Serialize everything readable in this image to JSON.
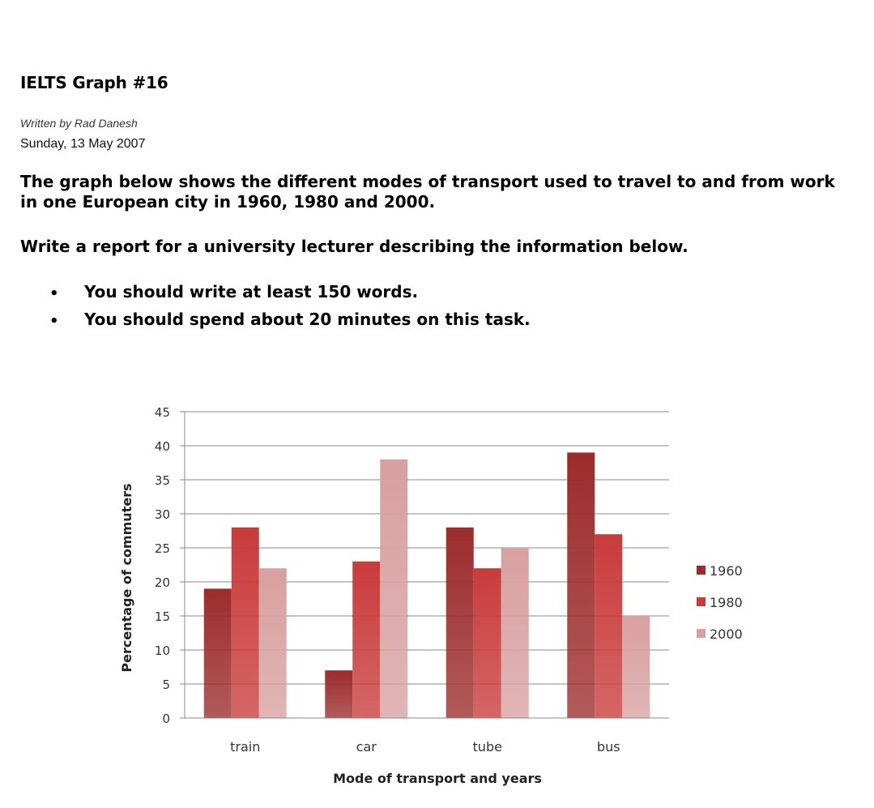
{
  "header": {
    "title": "IELTS Graph #16",
    "author": "Written by Rad Danesh",
    "date": "Sunday, 13 May 2007"
  },
  "task": {
    "description": "The graph below shows the different modes of transport used to travel to and from work in one European city in 1960, 1980 and 2000.",
    "instruction": "Write a report for a university lecturer describing the information below.",
    "bullets": [
      "You should write at least 150 words.",
      "You should spend about 20 minutes on this task."
    ],
    "bullet_glyph": "•"
  },
  "chart_data": {
    "type": "bar",
    "title": "",
    "xlabel": "Mode of transport and years",
    "ylabel": "Percentage of commuters",
    "categories": [
      "train",
      "car",
      "tube",
      "bus"
    ],
    "series": [
      {
        "name": "1960",
        "values": [
          19,
          7,
          28,
          39
        ],
        "color": "#9c2c2c"
      },
      {
        "name": "1980",
        "values": [
          28,
          23,
          22,
          27
        ],
        "color": "#c93b3b"
      },
      {
        "name": "2000",
        "values": [
          22,
          38,
          25,
          15
        ],
        "color": "#d8a0a0"
      }
    ],
    "ylim": [
      0,
      45
    ],
    "yticks": [
      0,
      5,
      10,
      15,
      20,
      25,
      30,
      35,
      40,
      45
    ],
    "grid": true,
    "legend_position": "right"
  }
}
